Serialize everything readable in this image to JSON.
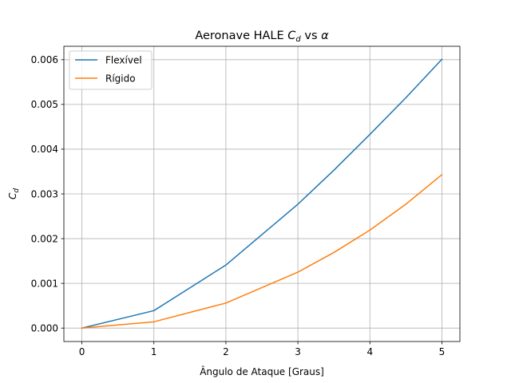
{
  "chart_data": {
    "type": "line",
    "title": {
      "prefix": "Aeronave HALE ",
      "var": "C",
      "sub": "d",
      "suffix": " vs ",
      "greek": "α"
    },
    "xlabel": "Ângulo de Ataque [Graus]",
    "ylabel": {
      "var": "C",
      "sub": "d"
    },
    "xlim": [
      -0.25,
      5.25
    ],
    "ylim": [
      -0.0003,
      0.0063
    ],
    "xticks": [
      0,
      1,
      2,
      3,
      4,
      5
    ],
    "yticks": [
      0,
      0.001,
      0.002,
      0.003,
      0.004,
      0.005,
      0.006
    ],
    "xtick_labels": [
      "0",
      "1",
      "2",
      "3",
      "4",
      "5"
    ],
    "ytick_labels": [
      "0.000",
      "0.001",
      "0.002",
      "0.003",
      "0.004",
      "0.005",
      "0.006"
    ],
    "grid": true,
    "legend_position": "top-left",
    "x": [
      0,
      1,
      2,
      3,
      3.5,
      4,
      4.5,
      5
    ],
    "series": [
      {
        "name": "Flexível",
        "color": "#1f77b4",
        "values": [
          0,
          0.00039,
          0.00141,
          0.00277,
          0.00353,
          0.00433,
          0.00515,
          0.00601
        ]
      },
      {
        "name": "Rígido",
        "color": "#ff7f0e",
        "values": [
          0,
          0.00014,
          0.00056,
          0.00125,
          0.00169,
          0.00219,
          0.00277,
          0.00343
        ]
      }
    ]
  }
}
